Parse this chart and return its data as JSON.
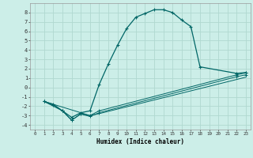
{
  "xlabel": "Humidex (Indice chaleur)",
  "background_color": "#cceee8",
  "grid_color": "#b0d8d0",
  "line_color": "#006666",
  "xlim": [
    -0.5,
    23.5
  ],
  "ylim": [
    -4.5,
    9.0
  ],
  "xticks": [
    0,
    1,
    2,
    3,
    4,
    5,
    6,
    7,
    8,
    9,
    10,
    11,
    12,
    13,
    14,
    15,
    16,
    17,
    18,
    19,
    20,
    21,
    22,
    23
  ],
  "yticks": [
    -4,
    -3,
    -2,
    -1,
    0,
    1,
    2,
    3,
    4,
    5,
    6,
    7,
    8
  ],
  "curve1_x": [
    1,
    2,
    3,
    4,
    5,
    6,
    7,
    8,
    9,
    10,
    11,
    12,
    13,
    14,
    15,
    16,
    17,
    18,
    22,
    23
  ],
  "curve1_y": [
    -1.5,
    -1.8,
    -2.5,
    -3.2,
    -2.7,
    -2.5,
    0.3,
    2.5,
    4.5,
    6.3,
    7.5,
    7.9,
    8.3,
    8.3,
    8.0,
    7.2,
    6.5,
    2.2,
    1.5,
    1.6
  ],
  "curve2_x": [
    1,
    2,
    3,
    4,
    5,
    6,
    7,
    22,
    23
  ],
  "curve2_y": [
    -1.5,
    -1.9,
    -2.5,
    -3.5,
    -2.8,
    -3.0,
    -2.5,
    1.35,
    1.55
  ],
  "curve3_x": [
    1,
    3,
    4,
    5,
    6,
    7,
    22,
    23
  ],
  "curve3_y": [
    -1.5,
    -2.5,
    -3.5,
    -2.85,
    -3.1,
    -2.7,
    1.15,
    1.35
  ],
  "curve4_x": [
    1,
    6,
    7,
    22,
    23
  ],
  "curve4_y": [
    -1.5,
    -3.0,
    -2.8,
    0.85,
    1.1
  ]
}
